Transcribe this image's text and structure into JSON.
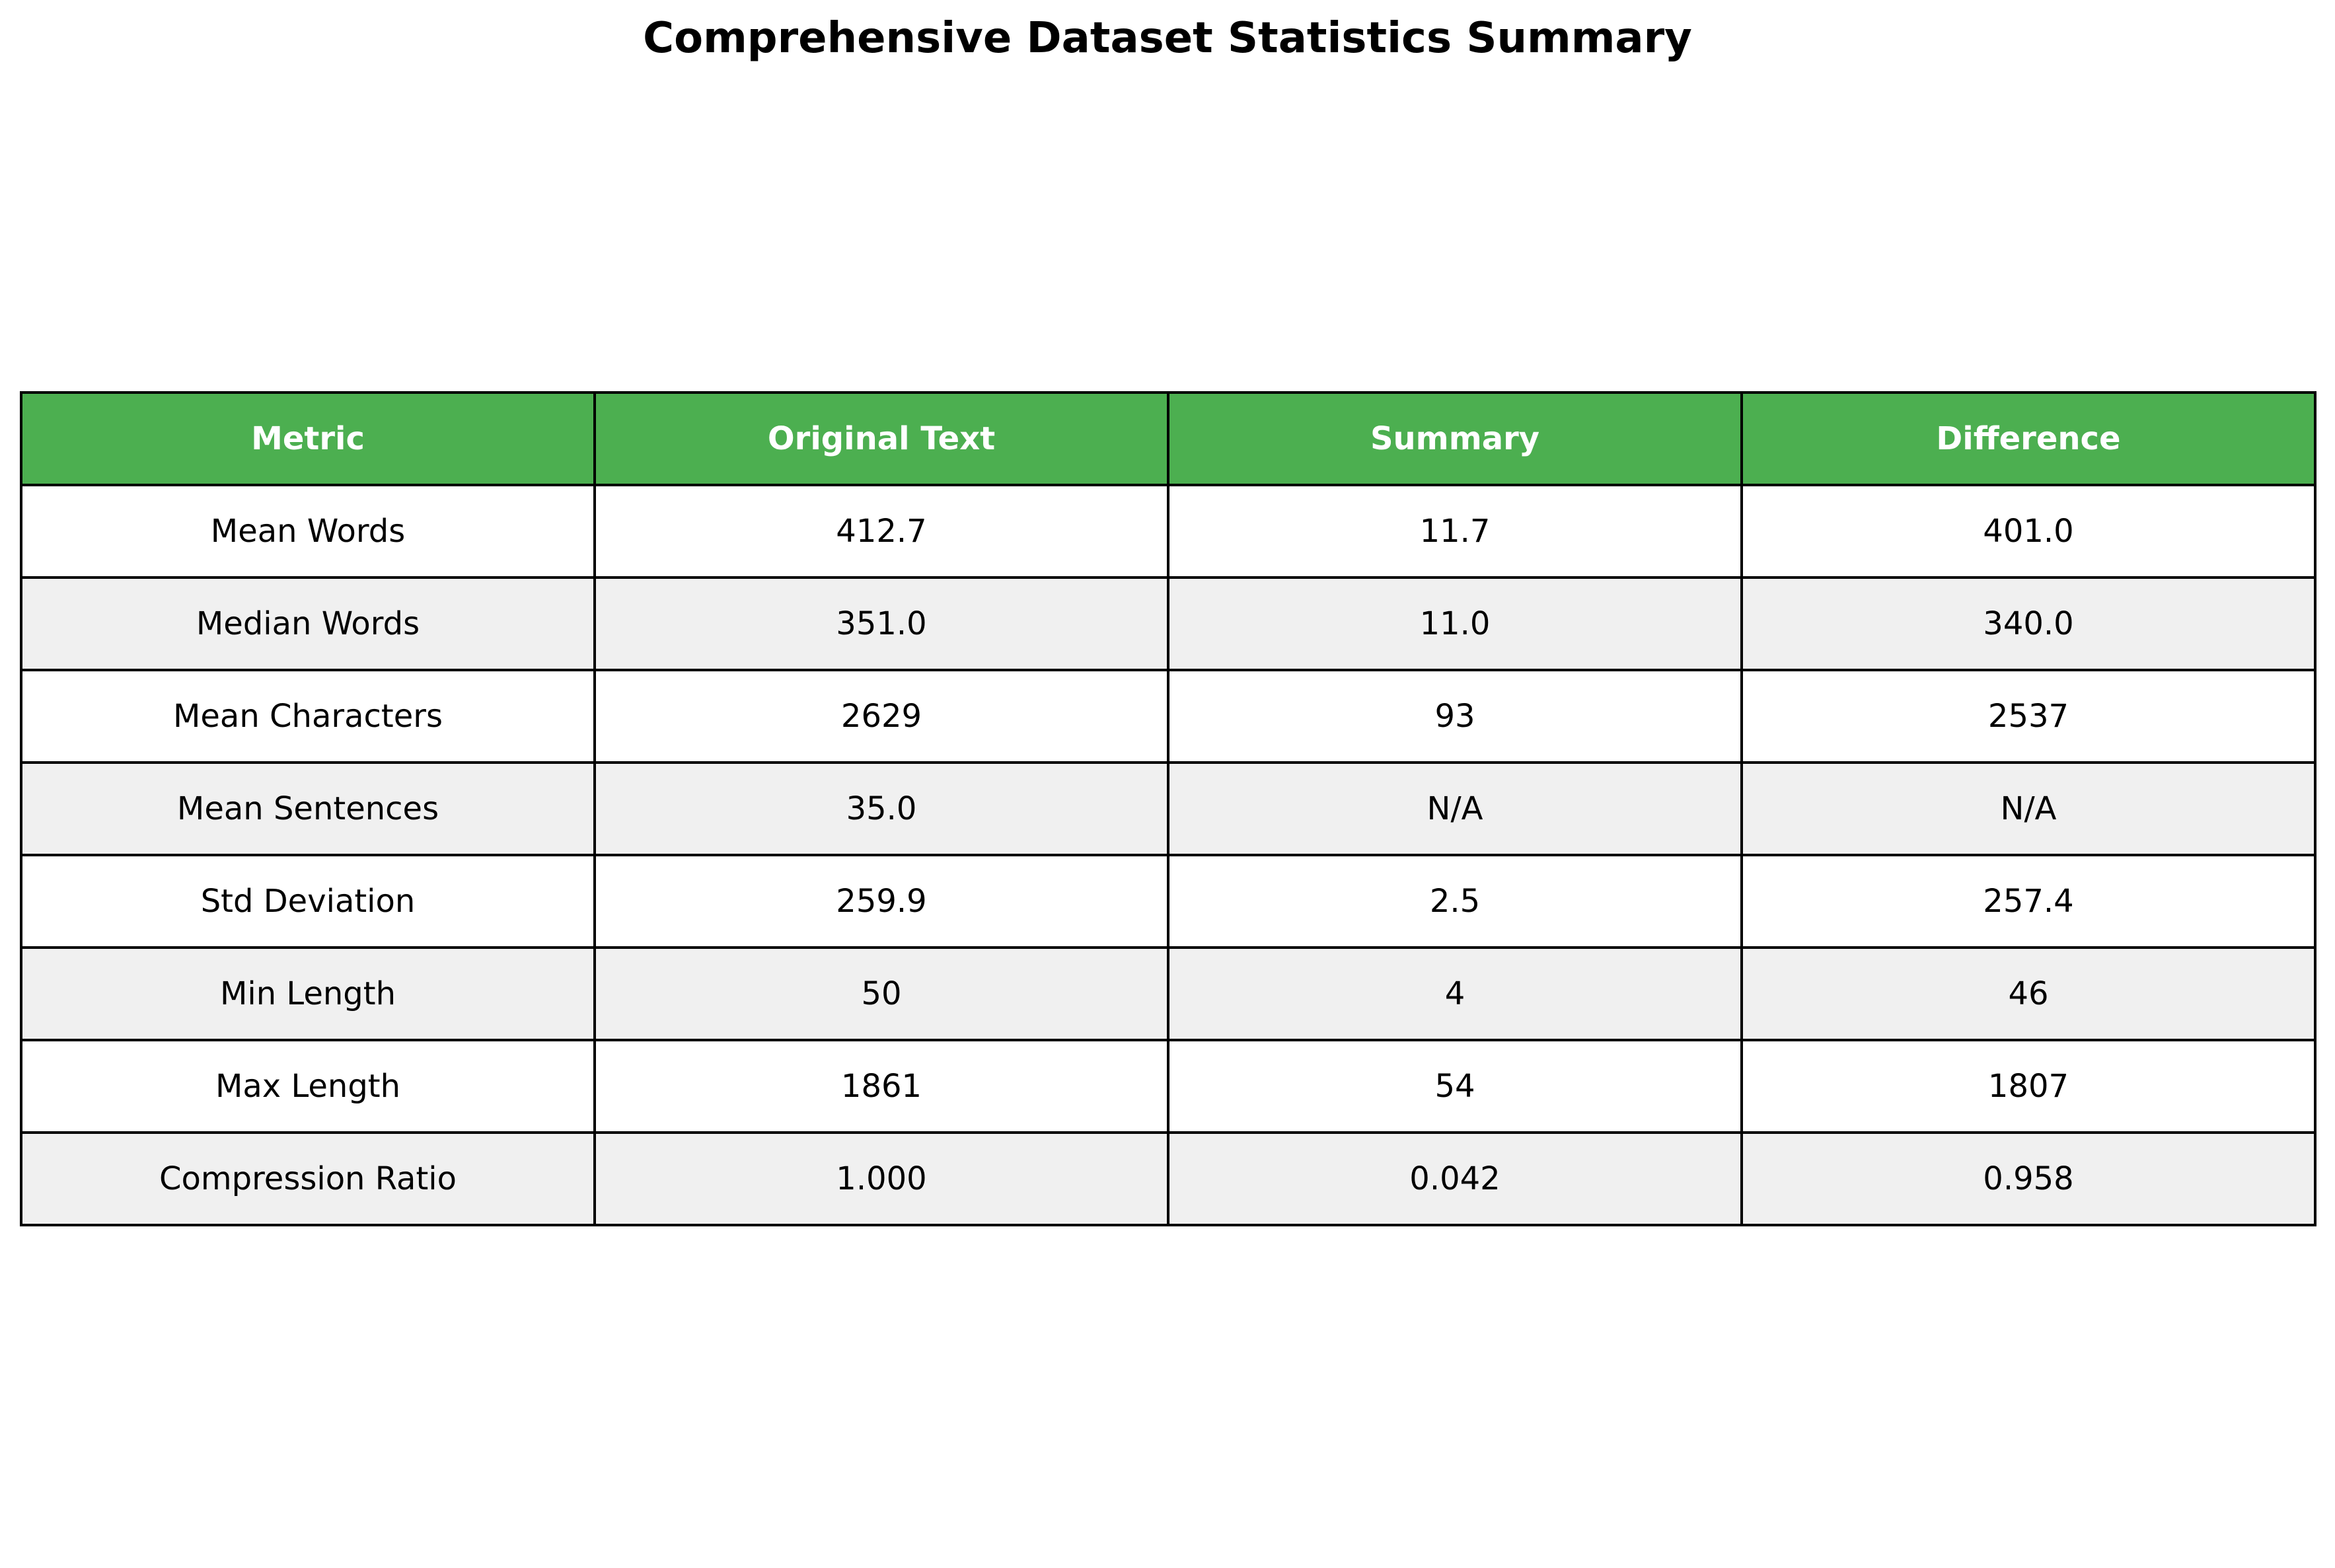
{
  "chart_data": {
    "type": "table",
    "title": "Comprehensive Dataset Statistics Summary",
    "columns": [
      "Metric",
      "Original Text",
      "Summary",
      "Difference"
    ],
    "rows": [
      [
        "Mean Words",
        "412.7",
        "11.7",
        "401.0"
      ],
      [
        "Median Words",
        "351.0",
        "11.0",
        "340.0"
      ],
      [
        "Mean Characters",
        "2629",
        "93",
        "2537"
      ],
      [
        "Mean Sentences",
        "35.0",
        "N/A",
        "N/A"
      ],
      [
        "Std Deviation",
        "259.9",
        "2.5",
        "257.4"
      ],
      [
        "Min Length",
        "50",
        "4",
        "46"
      ],
      [
        "Max Length",
        "1861",
        "54",
        "1807"
      ],
      [
        "Compression Ratio",
        "1.000",
        "0.042",
        "0.958"
      ]
    ],
    "header_color": "#4caf50",
    "header_text_color": "#ffffff",
    "stripe_color": "#f0f0f0"
  }
}
